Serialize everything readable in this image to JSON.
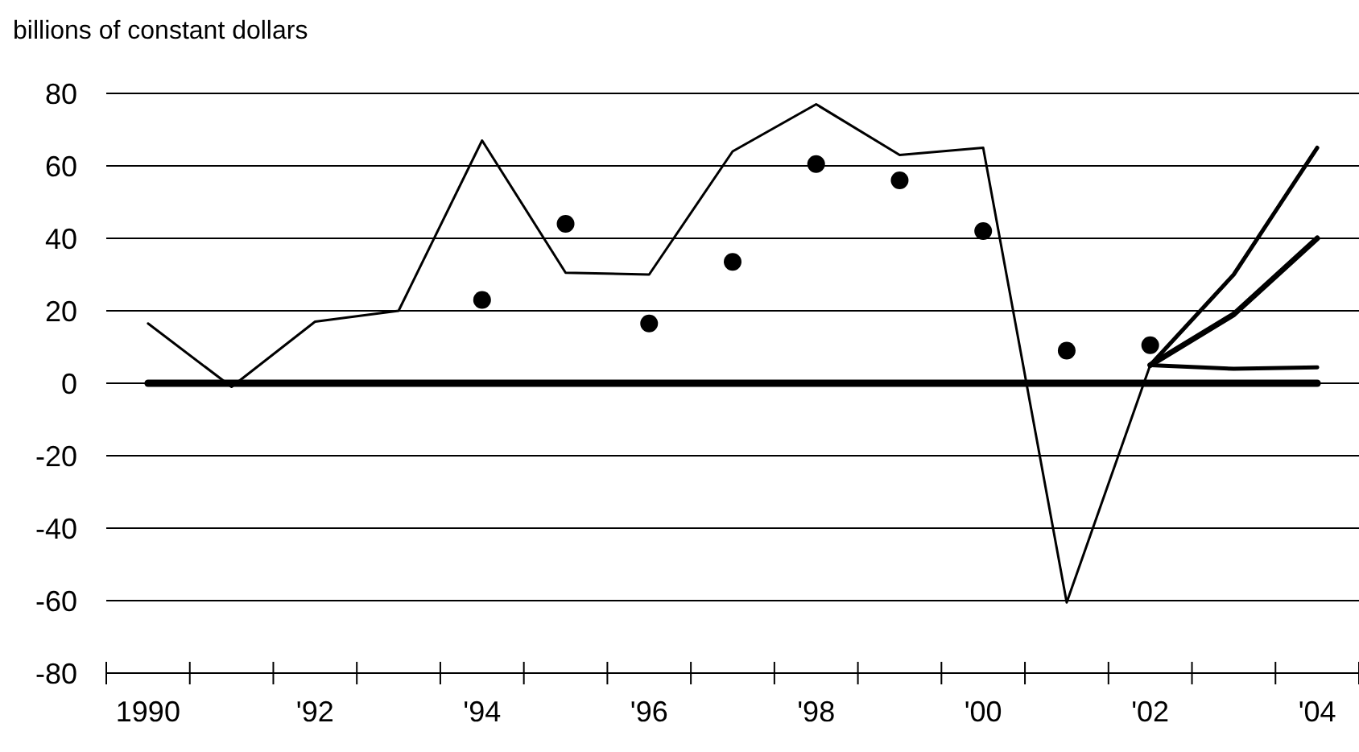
{
  "chart_data": {
    "type": "line",
    "ylabel": "billions of constant dollars",
    "categories": [
      "1990",
      null,
      "'92",
      null,
      "'94",
      null,
      "'96",
      null,
      "'98",
      null,
      "'00",
      null,
      "'02",
      null,
      "'04"
    ],
    "ylim": [
      -80,
      80
    ],
    "yticks": [
      -80,
      -60,
      -40,
      -20,
      0,
      20,
      40,
      60,
      80
    ],
    "grid": "y",
    "series": [
      {
        "color": "#000000",
        "values": [
          0,
          0,
          0,
          0,
          0,
          0,
          0,
          0,
          0,
          0,
          0,
          0,
          0,
          0,
          0
        ]
      },
      {
        "color": "#000000",
        "values": [
          16.5,
          -1,
          17,
          20,
          67,
          30.5,
          30,
          64,
          77,
          63,
          65,
          -60.5,
          5,
          null,
          null
        ]
      },
      {
        "type": "scatter",
        "marker": "circle",
        "color": "#000000",
        "values": [
          null,
          null,
          null,
          null,
          23,
          44,
          16.5,
          33.5,
          60.5,
          56,
          42,
          9,
          10.5,
          null,
          null
        ]
      },
      {
        "color": "#000000",
        "values": [
          null,
          null,
          null,
          null,
          null,
          null,
          null,
          null,
          null,
          null,
          null,
          null,
          5,
          30,
          65
        ]
      },
      {
        "color": "#000000",
        "values": [
          null,
          null,
          null,
          null,
          null,
          null,
          null,
          null,
          null,
          null,
          null,
          null,
          5,
          19,
          40
        ]
      },
      {
        "color": "#000000",
        "values": [
          null,
          null,
          null,
          null,
          null,
          null,
          null,
          null,
          null,
          null,
          null,
          null,
          5,
          4,
          4.4
        ]
      }
    ]
  }
}
